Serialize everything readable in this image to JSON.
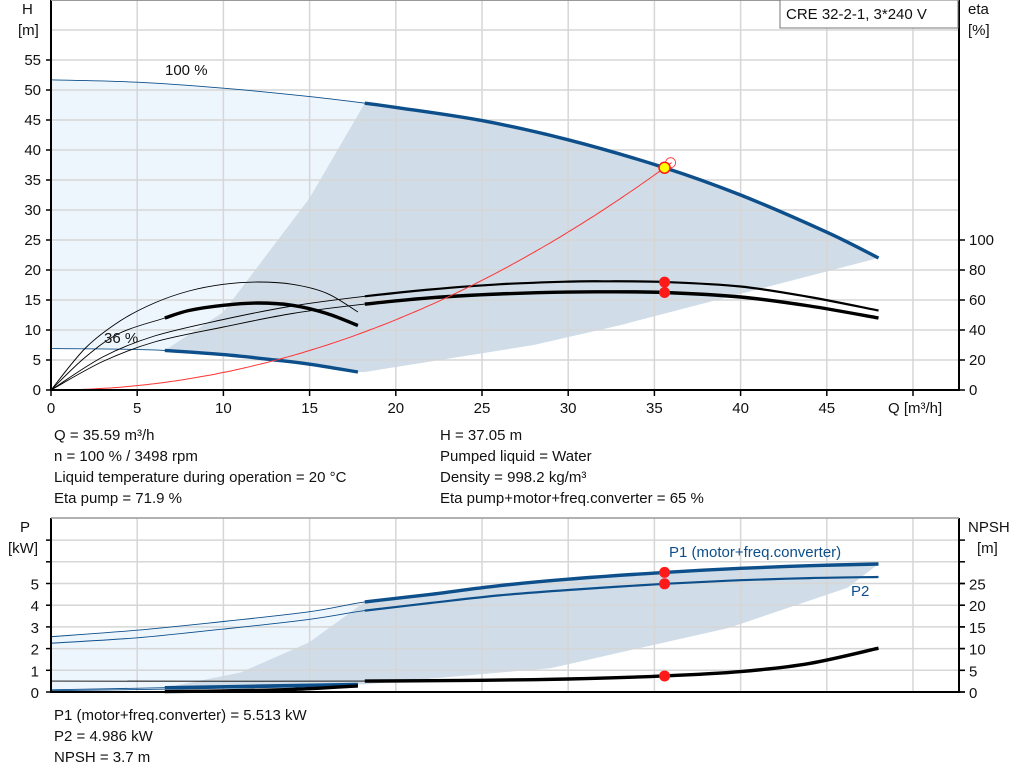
{
  "title_box": "CRE 32-2-1, 3*240 V",
  "colors": {
    "curve_blue": "#0d4f8b",
    "system_red": "#ff3333",
    "marker_red": "#ff1a1a",
    "marker_yellow": "#ffff00",
    "area_light": "#eef6fd",
    "area_dark": "#d0dce7",
    "eta_black": "#000000"
  },
  "info_top": {
    "left": [
      "Q = 35.59 m³/h",
      "n = 100 % / 3498 rpm",
      "Liquid temperature during operation = 20 °C",
      "Eta pump = 71.9 %"
    ],
    "right": [
      "H = 37.05 m",
      "Pumped liquid = Water",
      "Density = 998.2 kg/m³",
      "Eta pump+motor+freq.converter = 65 %"
    ]
  },
  "info_bottom": [
    "P1 (motor+freq.converter) = 5.513 kW",
    "P2 = 4.986 kW",
    "NPSH = 3.7 m"
  ],
  "chart_data": [
    {
      "type": "line",
      "xlabel": "Q [m³/h]",
      "ylabel_left": [
        "H",
        "[m]"
      ],
      "ylabel_right": [
        "eta",
        "[%]"
      ],
      "xlim": [
        0,
        52.6
      ],
      "ylim_left": [
        0,
        65
      ],
      "ylim_right_ticks": [
        0,
        100
      ],
      "x_ticks": [
        "0",
        "5",
        "10",
        "15",
        "20",
        "25",
        "30",
        "35",
        "40",
        "45"
      ],
      "y_ticks_left": [
        "0",
        "5",
        "10",
        "15",
        "20",
        "25",
        "30",
        "35",
        "40",
        "45",
        "50",
        "55"
      ],
      "y_ticks_right": [
        "0",
        "20",
        "40",
        "60",
        "80",
        "100"
      ],
      "grid": true,
      "annotations": [
        "100 %",
        "36 %"
      ],
      "series": [
        {
          "id": "H_100",
          "axis": "left",
          "color": "#0d4f8b",
          "operating_range": [
            18.2,
            48
          ],
          "points": [
            [
              0,
              51.7
            ],
            [
              5,
              51.3
            ],
            [
              10,
              50.3
            ],
            [
              15,
              48.9
            ],
            [
              18.2,
              47.8
            ],
            [
              20,
              47.1
            ],
            [
              25,
              44.9
            ],
            [
              30,
              41.7
            ],
            [
              35.59,
              37.05
            ],
            [
              40,
              32.5
            ],
            [
              45,
              26.3
            ],
            [
              48,
              22
            ]
          ]
        },
        {
          "id": "H_36",
          "axis": "left",
          "color": "#0d4f8b",
          "operating_range": [
            6.6,
            17.8
          ],
          "points": [
            [
              0,
              6.9
            ],
            [
              3,
              6.85
            ],
            [
              6.6,
              6.6
            ],
            [
              10,
              5.9
            ],
            [
              13,
              5.0
            ],
            [
              15,
              4.3
            ],
            [
              17.8,
              3.0
            ]
          ]
        },
        {
          "id": "eta_pump_100",
          "axis": "right",
          "color": "#000000",
          "operating_range": [
            18.2,
            48
          ],
          "thin": true,
          "points": [
            [
              0,
              0
            ],
            [
              3,
              22
            ],
            [
              6,
              36
            ],
            [
              10,
              47
            ],
            [
              14,
              56
            ],
            [
              18.2,
              62.5
            ],
            [
              22,
              67
            ],
            [
              26,
              70.5
            ],
            [
              30,
              72.3
            ],
            [
              32,
              72.5
            ],
            [
              35.59,
              72
            ],
            [
              40,
              69
            ],
            [
              44,
              62
            ],
            [
              48,
              53
            ]
          ]
        },
        {
          "id": "eta_total_100",
          "axis": "right",
          "color": "#000000",
          "operating_range": [
            18.2,
            48
          ],
          "points": [
            [
              0,
              0
            ],
            [
              3,
              19
            ],
            [
              6,
              32
            ],
            [
              10,
              42
            ],
            [
              14,
              51
            ],
            [
              18.2,
              57.3
            ],
            [
              22,
              61.5
            ],
            [
              26,
              64
            ],
            [
              30,
              65.3
            ],
            [
              32,
              65.5
            ],
            [
              35.59,
              65
            ],
            [
              40,
              62
            ],
            [
              44,
              56
            ],
            [
              48,
              48
            ]
          ]
        },
        {
          "id": "eta_pump_36",
          "axis": "right",
          "color": "#000000",
          "operating_range": [
            17.8,
            17.8
          ],
          "points": [
            [
              0,
              0
            ],
            [
              2,
              28
            ],
            [
              4,
              46
            ],
            [
              6,
              58
            ],
            [
              8,
              66
            ],
            [
              10,
              70.5
            ],
            [
              12,
              72
            ],
            [
              14,
              70.5
            ],
            [
              16,
              64.5
            ],
            [
              17.8,
              52
            ]
          ]
        },
        {
          "id": "eta_total_36",
          "axis": "right",
          "color": "#000000",
          "operating_range": [
            6.6,
            17.8
          ],
          "points": [
            [
              0,
              0
            ],
            [
              2,
              22
            ],
            [
              4,
              38
            ],
            [
              6.6,
              48
            ],
            [
              8,
              53
            ],
            [
              10,
              56.5
            ],
            [
              12,
              58
            ],
            [
              14,
              56.5
            ],
            [
              16,
              51
            ],
            [
              17.8,
              43
            ]
          ]
        },
        {
          "id": "system_curve",
          "axis": "left",
          "color": "#ff3333",
          "type": "quadratic",
          "k": 0.02925,
          "q_max": 36
        }
      ],
      "areas": {
        "full_range": [
          [
            0,
            51.7
          ],
          [
            5,
            51.3
          ],
          [
            10,
            50.3
          ],
          [
            15,
            48.9
          ],
          [
            18.2,
            47.8
          ],
          [
            17.8,
            3.0
          ],
          [
            15,
            4.3
          ],
          [
            13,
            5.0
          ],
          [
            10,
            5.9
          ],
          [
            6.6,
            6.6
          ],
          [
            3,
            6.85
          ],
          [
            0,
            6.9
          ]
        ],
        "operating_range": [
          [
            18.2,
            47.8
          ],
          [
            20,
            47.1
          ],
          [
            25,
            44.9
          ],
          [
            30,
            41.7
          ],
          [
            35.59,
            37.05
          ],
          [
            40,
            32.5
          ],
          [
            45,
            26.3
          ],
          [
            48,
            22
          ],
          [
            33,
            10.8
          ],
          [
            28,
            7.5
          ],
          [
            18.2,
            3.0
          ],
          [
            17.8,
            3.0
          ],
          [
            15,
            4.3
          ],
          [
            13,
            5.0
          ],
          [
            10,
            5.9
          ],
          [
            6.6,
            6.6
          ],
          [
            10,
            13
          ],
          [
            15,
            32
          ],
          [
            18.2,
            47.8
          ]
        ]
      },
      "duty_point": {
        "Q": 35.59,
        "H": 37.05,
        "eta_pump": 71.9,
        "eta_total": 65
      }
    },
    {
      "type": "line",
      "ylabel_left": [
        "P",
        "[kW]"
      ],
      "ylabel_right": [
        "NPSH",
        "[m]"
      ],
      "xlim": [
        0,
        52.6
      ],
      "ylim_left": [
        0,
        8
      ],
      "y_ticks_left": [
        "0",
        "1",
        "2",
        "3",
        "4",
        "5"
      ],
      "y_ticks_right": [
        "0",
        "5",
        "10",
        "15",
        "20",
        "25"
      ],
      "grid": true,
      "series": [
        {
          "id": "P1_100",
          "name": "P1 (motor+freq.converter)",
          "axis": "left",
          "color": "#0d4f8b",
          "operating_range": [
            18.2,
            48
          ],
          "points": [
            [
              0,
              2.55
            ],
            [
              5,
              2.85
            ],
            [
              10,
              3.25
            ],
            [
              15,
              3.7
            ],
            [
              18.2,
              4.15
            ],
            [
              22,
              4.5
            ],
            [
              26,
              4.9
            ],
            [
              30,
              5.2
            ],
            [
              35.59,
              5.513
            ],
            [
              40,
              5.7
            ],
            [
              44,
              5.82
            ],
            [
              48,
              5.9
            ]
          ]
        },
        {
          "id": "P2_100",
          "name": "P2",
          "axis": "left",
          "color": "#0d4f8b",
          "operating_range": [
            18.2,
            48
          ],
          "thin": true,
          "points": [
            [
              0,
              2.25
            ],
            [
              5,
              2.5
            ],
            [
              10,
              2.9
            ],
            [
              15,
              3.35
            ],
            [
              18.2,
              3.75
            ],
            [
              22,
              4.1
            ],
            [
              26,
              4.45
            ],
            [
              30,
              4.7
            ],
            [
              35.59,
              4.986
            ],
            [
              40,
              5.15
            ],
            [
              44,
              5.25
            ],
            [
              48,
              5.3
            ]
          ]
        },
        {
          "id": "P1_36",
          "axis": "left",
          "color": "#0d4f8b",
          "operating_range": [
            6.6,
            17.8
          ],
          "points": [
            [
              0,
              0.1
            ],
            [
              6.6,
              0.2
            ],
            [
              12,
              0.27
            ],
            [
              17.8,
              0.35
            ]
          ]
        },
        {
          "id": "P2_36",
          "axis": "left",
          "color": "#0d4f8b",
          "operating_range": [
            17.8,
            17.8
          ],
          "points": [
            [
              0,
              0.06
            ],
            [
              6.6,
              0.13
            ],
            [
              12,
              0.2
            ],
            [
              17.8,
              0.28
            ]
          ]
        },
        {
          "id": "NPSH_100",
          "axis": "right",
          "color": "#000000",
          "operating_range": [
            18.2,
            48
          ],
          "points": [
            [
              0,
              2.5
            ],
            [
              18.2,
              2.5
            ],
            [
              25,
              2.7
            ],
            [
              30,
              3.0
            ],
            [
              35.59,
              3.7
            ],
            [
              40,
              4.7
            ],
            [
              44,
              6.6
            ],
            [
              48,
              10.1
            ]
          ]
        },
        {
          "id": "NPSH_36",
          "axis": "right",
          "color": "#000000",
          "operating_range": [
            6.6,
            17.8
          ],
          "points": [
            [
              6.6,
              0.1
            ],
            [
              10,
              0.25
            ],
            [
              14,
              0.6
            ],
            [
              17.8,
              1.4
            ]
          ]
        }
      ],
      "areas": {
        "full_range": [
          [
            0,
            2.55
          ],
          [
            5,
            2.85
          ],
          [
            10,
            3.25
          ],
          [
            15,
            3.7
          ],
          [
            18.2,
            4.15
          ],
          [
            17.8,
            0.35
          ],
          [
            12,
            0.27
          ],
          [
            6.6,
            0.2
          ],
          [
            0,
            0.1
          ]
        ],
        "operating_range": [
          [
            18.2,
            4.15
          ],
          [
            22,
            4.5
          ],
          [
            26,
            4.9
          ],
          [
            30,
            5.2
          ],
          [
            35.59,
            5.513
          ],
          [
            40,
            5.7
          ],
          [
            44,
            5.82
          ],
          [
            48,
            5.9
          ],
          [
            46.2,
            4.8
          ],
          [
            39.3,
            2.95
          ],
          [
            29,
            1.1
          ],
          [
            18.2,
            0.35
          ],
          [
            17.8,
            0.35
          ],
          [
            6.6,
            0.2
          ],
          [
            11,
            0.9
          ],
          [
            15,
            2.3
          ],
          [
            18.2,
            4.15
          ]
        ]
      },
      "duty_point": {
        "Q": 35.59,
        "P1": 5.513,
        "P2": 4.986,
        "NPSH": 3.7
      }
    }
  ]
}
